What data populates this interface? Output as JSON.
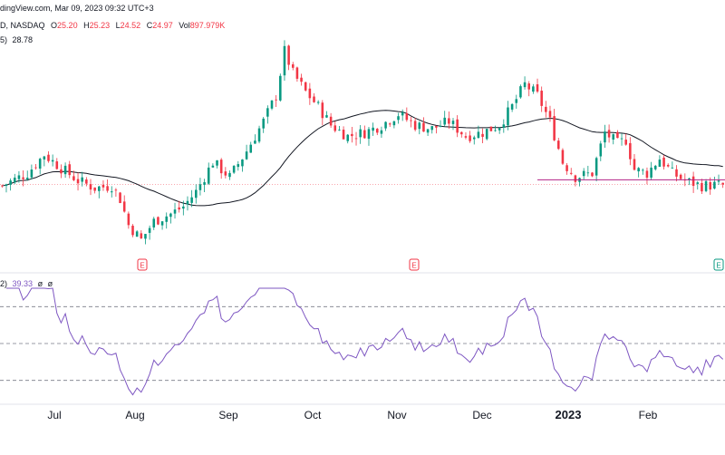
{
  "header": {
    "source_line": "dingView.com, Mar 09, 2023 09:32 UTC+3",
    "symbol_line_prefix": "D, NASDAQ",
    "o_label": "O",
    "o_value": "25.20",
    "h_label": "H",
    "h_value": "25.23",
    "l_label": "L",
    "l_value": "24.52",
    "c_label": "C",
    "c_value": "24.97",
    "vol_label": "Vol",
    "vol_value": "897.979K",
    "ma_line_prefix": "5)",
    "ma_value": "28.78",
    "rsi_line_prefix": "2)",
    "rsi_value": "39.33",
    "rsi_extra1": "ø",
    "rsi_extra2": "ø"
  },
  "colors": {
    "up": "#089981",
    "down": "#f23645",
    "ma": "#131722",
    "rsi": "#7e57c2",
    "hline": "#b22284",
    "earnings": "#f23645",
    "earnings_green": "#089981"
  },
  "earnings_markers": [
    {
      "label": "E",
      "date": "Aug"
    },
    {
      "label": "E",
      "date": "Nov"
    },
    {
      "label": "E",
      "date": "Feb"
    }
  ],
  "chart_data": [
    {
      "type": "candlestick",
      "x_ticks": [
        "Jul",
        "Aug",
        "Sep",
        "Oct",
        "Nov",
        "Dec",
        "2023",
        "Feb"
      ],
      "moving_average": "28.78",
      "support_level_line": true,
      "candles_ohlc_start": [
        {
          "d": 0,
          "o": 24.8,
          "h": 25.4,
          "l": 24.4,
          "c": 24.9
        }
      ],
      "last_candle": {
        "open": 25.2,
        "high": 25.23,
        "low": 24.52,
        "close": 24.97
      }
    },
    {
      "type": "line",
      "name": "RSI",
      "value_last": "39.33",
      "bands": [
        70,
        50,
        30
      ],
      "ylim": [
        20,
        80
      ]
    }
  ]
}
